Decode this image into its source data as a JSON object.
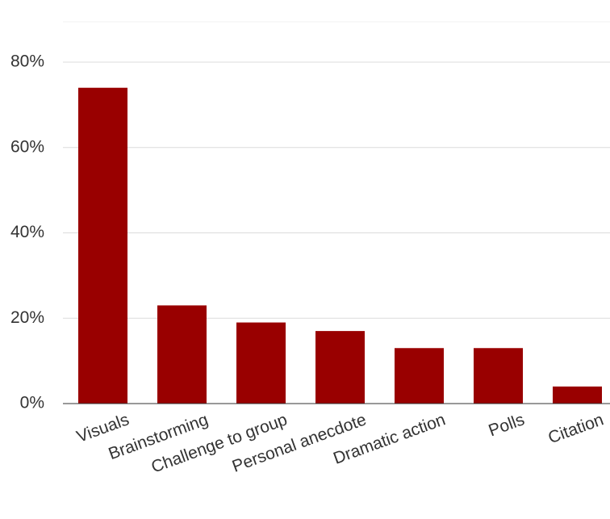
{
  "chart_data": {
    "type": "bar",
    "categories": [
      "Visuals",
      "Brainstorming",
      "Challenge to group",
      "Personal anecdote",
      "Dramatic action",
      "Polls",
      "Citation"
    ],
    "values": [
      74,
      23,
      19,
      17,
      13,
      13,
      4
    ],
    "color": "#990000",
    "ylim": [
      0,
      90
    ],
    "yticks": [
      {
        "value": 0,
        "label": "0%"
      },
      {
        "value": 20,
        "label": "20%"
      },
      {
        "value": 40,
        "label": "40%"
      },
      {
        "value": 60,
        "label": "60%"
      },
      {
        "value": 80,
        "label": "80%"
      }
    ],
    "grid": true
  }
}
